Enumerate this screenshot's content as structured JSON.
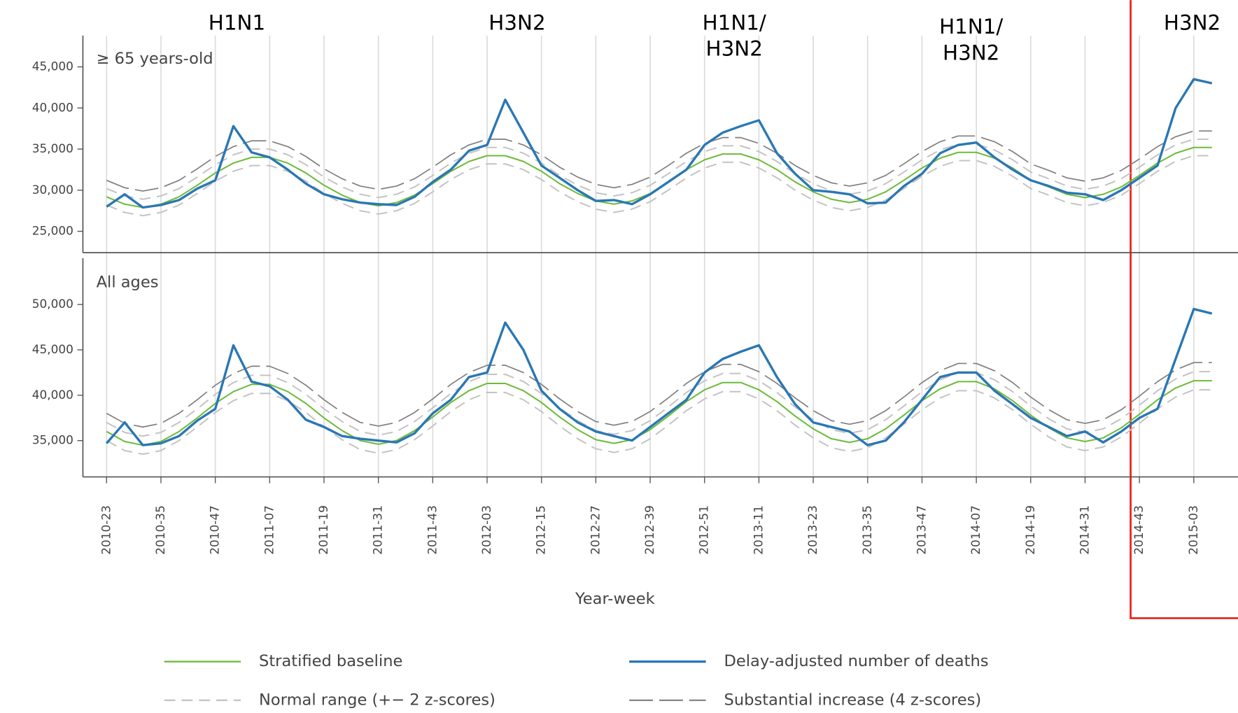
{
  "chart_data": {
    "type": "line",
    "x_label": "Year-week",
    "grid": "x",
    "annotations": [
      [
        "H1N1"
      ],
      [
        "H3N2"
      ],
      [
        "H1N1/",
        "H3N2"
      ],
      [
        "H1N1/",
        "H3N2"
      ],
      [
        "H3N2"
      ]
    ],
    "legend": [
      {
        "name": "Stratified baseline",
        "color": "#6dbb3a"
      },
      {
        "name": "Delay-adjusted number of deaths",
        "color": "#2a77b4"
      },
      {
        "name": "Normal range (+− 2 z-scores)",
        "color": "#c4c4c4"
      },
      {
        "name": "Substantial increase (4 z-scores)",
        "color": "#7f7f7f"
      }
    ],
    "categories": [
      "2010-23",
      null,
      null,
      "2010-35",
      null,
      null,
      "2010-47",
      null,
      null,
      "2011-07",
      null,
      null,
      "2011-19",
      null,
      null,
      "2011-31",
      null,
      null,
      "2011-43",
      null,
      null,
      "2012-03",
      null,
      null,
      "2012-15",
      null,
      null,
      "2012-27",
      null,
      null,
      "2012-39",
      null,
      null,
      "2012-51",
      null,
      null,
      "2013-11",
      null,
      null,
      "2013-23",
      null,
      null,
      "2013-35",
      null,
      null,
      "2013-47",
      null,
      null,
      "2014-07",
      null,
      null,
      "2014-19",
      null,
      null,
      "2014-31",
      null,
      null,
      "2014-43",
      null,
      null,
      "2015-03",
      null
    ],
    "panels": [
      {
        "label": "≥ 65 years-old",
        "ylim": [
          22400,
          48800
        ],
        "yticks": [
          {
            "value": 25000,
            "label": "25,000"
          },
          {
            "value": 30000,
            "label": "30,000"
          },
          {
            "value": 35000,
            "label": "35,000"
          },
          {
            "value": 40000,
            "label": "40,000"
          },
          {
            "value": 45000,
            "label": "45,000"
          }
        ],
        "baseline": [
          29200,
          28300,
          27900,
          28300,
          29200,
          30600,
          32100,
          33300,
          34000,
          34000,
          33300,
          32100,
          30600,
          29400,
          28500,
          28100,
          28500,
          29400,
          30800,
          32300,
          33500,
          34200,
          34200,
          33500,
          32300,
          30800,
          29600,
          28700,
          28300,
          28700,
          29600,
          31000,
          32500,
          33700,
          34400,
          34400,
          33700,
          32500,
          31000,
          29800,
          28900,
          28500,
          28900,
          29800,
          31200,
          32700,
          33900,
          34600,
          34600,
          33900,
          32700,
          31200,
          30400,
          29500,
          29100,
          29500,
          30400,
          31800,
          33300,
          34500,
          35200,
          35200
        ],
        "observed": [
          28000,
          29500,
          27900,
          28200,
          28800,
          30200,
          31200,
          37800,
          34600,
          34000,
          32500,
          30800,
          29500,
          28900,
          28500,
          28300,
          28200,
          29200,
          31000,
          32500,
          34800,
          35500,
          41000,
          37000,
          33000,
          31500,
          30000,
          28700,
          28800,
          28300,
          29500,
          31000,
          32500,
          35500,
          37000,
          37800,
          38500,
          34500,
          32000,
          30000,
          29800,
          29500,
          28400,
          28500,
          30500,
          32000,
          34500,
          35500,
          35800,
          34000,
          32500,
          31200,
          30500,
          29700,
          29500,
          28800,
          30000,
          31500,
          33000,
          40000,
          43500,
          43000
        ],
        "normal_range": {
          "low": [
            28200,
            27300,
            26900,
            27300,
            28200,
            29600,
            31100,
            32300,
            33000,
            33000,
            32300,
            31100,
            29600,
            28400,
            27500,
            27100,
            27500,
            28400,
            29800,
            31300,
            32500,
            33200,
            33200,
            32500,
            31300,
            29800,
            28600,
            27700,
            27300,
            27700,
            28600,
            30000,
            31500,
            32700,
            33400,
            33400,
            32700,
            31500,
            30000,
            28800,
            27900,
            27500,
            27900,
            28800,
            30200,
            31700,
            32900,
            33600,
            33600,
            32900,
            31700,
            30200,
            29400,
            28500,
            28100,
            28500,
            29400,
            30800,
            32300,
            33500,
            34200,
            34200
          ],
          "high": [
            30200,
            29300,
            28900,
            29300,
            30200,
            31600,
            33100,
            34300,
            35000,
            35000,
            34300,
            33100,
            31600,
            30400,
            29500,
            29100,
            29500,
            30400,
            31800,
            33300,
            34500,
            35200,
            35200,
            34500,
            33300,
            31800,
            30600,
            29700,
            29300,
            29700,
            30600,
            32000,
            33500,
            34700,
            35400,
            35400,
            34700,
            33500,
            32000,
            30800,
            29900,
            29500,
            29900,
            30800,
            32200,
            33700,
            34900,
            35600,
            35600,
            34900,
            33700,
            32200,
            31400,
            30500,
            30100,
            30500,
            31400,
            32800,
            34300,
            35500,
            36200,
            36200
          ]
        },
        "substantial_increase": [
          31200,
          30300,
          29900,
          30300,
          31200,
          32600,
          34100,
          35300,
          36000,
          36000,
          35300,
          34100,
          32600,
          31400,
          30500,
          30100,
          30500,
          31400,
          32800,
          34300,
          35500,
          36200,
          36200,
          35500,
          34300,
          32800,
          31600,
          30700,
          30300,
          30700,
          31600,
          33000,
          34500,
          35700,
          36400,
          36400,
          35700,
          34500,
          33000,
          31800,
          30900,
          30500,
          30900,
          31800,
          33200,
          34700,
          35900,
          36600,
          36600,
          35900,
          34700,
          33200,
          32400,
          31500,
          31100,
          31500,
          32400,
          33800,
          35300,
          36500,
          37200,
          37200
        ]
      },
      {
        "label": "All ages",
        "ylim": [
          31000,
          55100
        ],
        "yticks": [
          {
            "value": 35000,
            "label": "35,000"
          },
          {
            "value": 40000,
            "label": "40,000"
          },
          {
            "value": 45000,
            "label": "45,000"
          },
          {
            "value": 50000,
            "label": "50,000"
          }
        ],
        "baseline": [
          36000,
          34900,
          34500,
          34900,
          36000,
          37500,
          39100,
          40400,
          41200,
          41200,
          40400,
          39100,
          37500,
          36100,
          35000,
          34600,
          35000,
          36100,
          37600,
          39200,
          40500,
          41300,
          41300,
          40500,
          39200,
          37600,
          36200,
          35100,
          34700,
          35100,
          36200,
          37700,
          39300,
          40600,
          41400,
          41400,
          40600,
          39300,
          37700,
          36300,
          35200,
          34800,
          35200,
          36300,
          37800,
          39400,
          40700,
          41500,
          41500,
          40700,
          39400,
          37800,
          36400,
          35300,
          34900,
          35300,
          36400,
          37900,
          39500,
          40800,
          41600,
          41600
        ],
        "observed": [
          34700,
          37000,
          34500,
          34700,
          35500,
          37200,
          38500,
          45500,
          41500,
          41000,
          39500,
          37300,
          36500,
          35500,
          35200,
          35000,
          34800,
          35800,
          38000,
          39500,
          42000,
          42500,
          48000,
          45000,
          40500,
          38500,
          37000,
          36000,
          35500,
          35000,
          36500,
          38000,
          39500,
          42500,
          44000,
          44800,
          45500,
          42000,
          39000,
          37000,
          36500,
          36000,
          34500,
          35000,
          37000,
          39500,
          42000,
          42500,
          42500,
          40500,
          39000,
          37500,
          36500,
          35500,
          36000,
          34800,
          36000,
          37500,
          38500,
          44000,
          49500,
          49000
        ],
        "normal_range": {
          "low": [
            35000,
            33900,
            33500,
            33900,
            35000,
            36500,
            38100,
            39400,
            40200,
            40200,
            39400,
            38100,
            36500,
            35100,
            34000,
            33600,
            34000,
            35100,
            36600,
            38200,
            39500,
            40300,
            40300,
            39500,
            38200,
            36600,
            35200,
            34100,
            33700,
            34100,
            35200,
            36700,
            38300,
            39600,
            40400,
            40400,
            39600,
            38300,
            36700,
            35300,
            34200,
            33800,
            34200,
            35300,
            36800,
            38400,
            39700,
            40500,
            40500,
            39700,
            38400,
            36800,
            35400,
            34300,
            33900,
            34300,
            35400,
            36900,
            38500,
            39800,
            40600,
            40600
          ],
          "high": [
            37000,
            35900,
            35500,
            35900,
            37000,
            38500,
            40100,
            41400,
            42200,
            42200,
            41400,
            40100,
            38500,
            37100,
            36000,
            35600,
            36000,
            37100,
            38600,
            40200,
            41500,
            42300,
            42300,
            41500,
            40200,
            38600,
            37200,
            36100,
            35700,
            36100,
            37200,
            38700,
            40300,
            41600,
            42400,
            42400,
            41600,
            40300,
            38700,
            37300,
            36200,
            35800,
            36200,
            37300,
            38800,
            40400,
            41700,
            42500,
            42500,
            41700,
            40400,
            38800,
            37400,
            36300,
            35900,
            36300,
            37400,
            38900,
            40500,
            41800,
            42600,
            42600
          ]
        },
        "substantial_increase": [
          38000,
          36900,
          36500,
          36900,
          38000,
          39500,
          41100,
          42400,
          43200,
          43200,
          42400,
          41100,
          39500,
          38100,
          37000,
          36600,
          37000,
          38100,
          39600,
          41200,
          42500,
          43300,
          43300,
          42500,
          41200,
          39600,
          38200,
          37100,
          36700,
          37100,
          38200,
          39700,
          41300,
          42600,
          43400,
          43400,
          42600,
          41300,
          39700,
          38300,
          37200,
          36800,
          37200,
          38300,
          39800,
          41400,
          42700,
          43500,
          43500,
          42700,
          41400,
          39800,
          38400,
          37300,
          36900,
          37300,
          38400,
          39900,
          41500,
          42800,
          43600,
          43600
        ]
      }
    ]
  }
}
